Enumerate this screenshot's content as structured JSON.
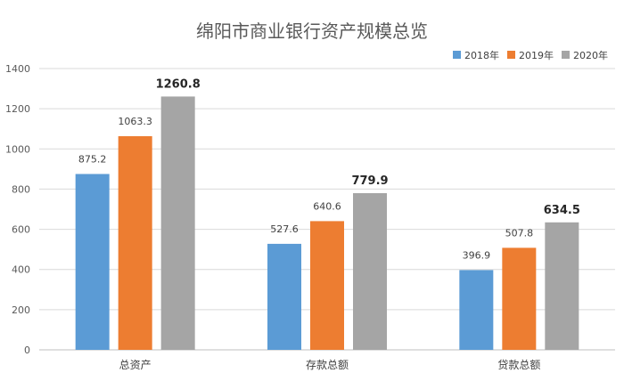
{
  "chart_data": {
    "type": "bar",
    "title": "绵阳市商业银行资产规模总览",
    "categories": [
      "总资产",
      "存款总额",
      "贷款总额"
    ],
    "series": [
      {
        "name": "2018年",
        "color": "#5b9bd5",
        "values": [
          875.2,
          527.6,
          396.9
        ],
        "labels": [
          "875.2",
          "527.6",
          "396.9"
        ]
      },
      {
        "name": "2019年",
        "color": "#ed7d31",
        "values": [
          1063.3,
          640.6,
          507.8
        ],
        "labels": [
          "1063.3",
          "640.6",
          "507.8"
        ]
      },
      {
        "name": "2020年",
        "color": "#a5a5a5",
        "values": [
          1260.8,
          779.9,
          634.5
        ],
        "labels": [
          "1260.8",
          "779.9",
          "634.5"
        ],
        "bold_labels": true
      }
    ],
    "ylim": [
      0,
      1400
    ],
    "yticks": [
      0,
      200,
      400,
      600,
      800,
      1000,
      1200,
      1400
    ],
    "ytick_labels": [
      "0",
      "200",
      "400",
      "600",
      "800",
      "1000",
      "1200",
      "1400"
    ],
    "grid": true,
    "legend_position": "top-right",
    "xlabel": "",
    "ylabel": ""
  }
}
